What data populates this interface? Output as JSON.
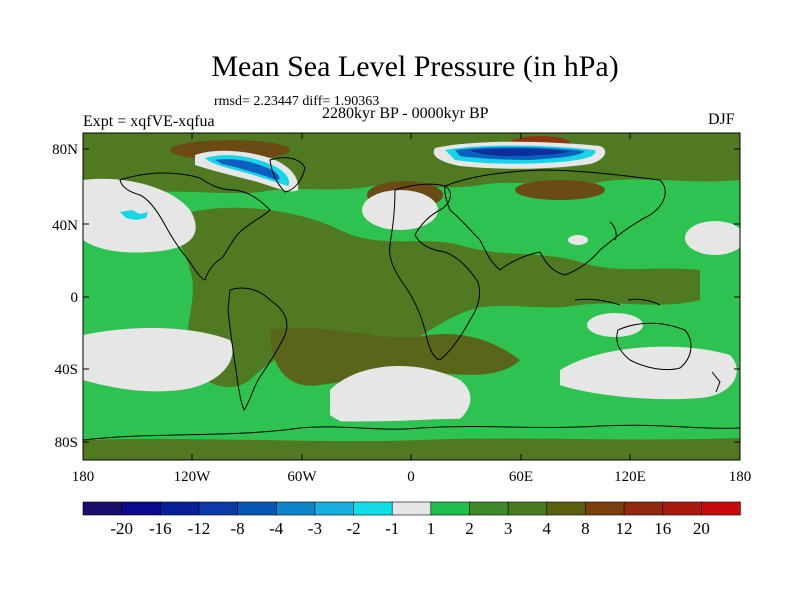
{
  "title": "Mean Sea Level Pressure (in hPa)",
  "stats_line": "rmsd= 2.23447 diff= 1.90363",
  "period": "2280kyr BP - 0000kyr BP",
  "experiment": "Expt = xqfVE-xqfua",
  "season": "DJF",
  "lat_labels": [
    "80N",
    "40N",
    "0",
    "40S",
    "80S"
  ],
  "lon_labels": [
    "180",
    "120W",
    "60W",
    "0",
    "60E",
    "120E",
    "180"
  ],
  "colorbar": {
    "labels": [
      "-20",
      "-16",
      "-12",
      "-8",
      "-4",
      "-3",
      "-2",
      "-1",
      "1",
      "2",
      "3",
      "4",
      "8",
      "12",
      "16",
      "20"
    ],
    "colors": [
      "#1a0f6b",
      "#0a0a8a",
      "#0b1f9c",
      "#0a3aaa",
      "#0757b5",
      "#0b84c8",
      "#19aee0",
      "#10e0e6",
      "#e6e6e6",
      "#20c050",
      "#3f8a2a",
      "#4a7a20",
      "#5a6010",
      "#7a4010",
      "#8f2a10",
      "#a81a10",
      "#c80a0a"
    ]
  },
  "colors": {
    "green_light": "#2ec350",
    "green_mid": "#3f8a2a",
    "olive": "#5a6a1c",
    "gray": "#e6e6e6",
    "brown": "#7a4a14",
    "blue": "#0a5fc0",
    "cyan": "#14d6e6"
  }
}
